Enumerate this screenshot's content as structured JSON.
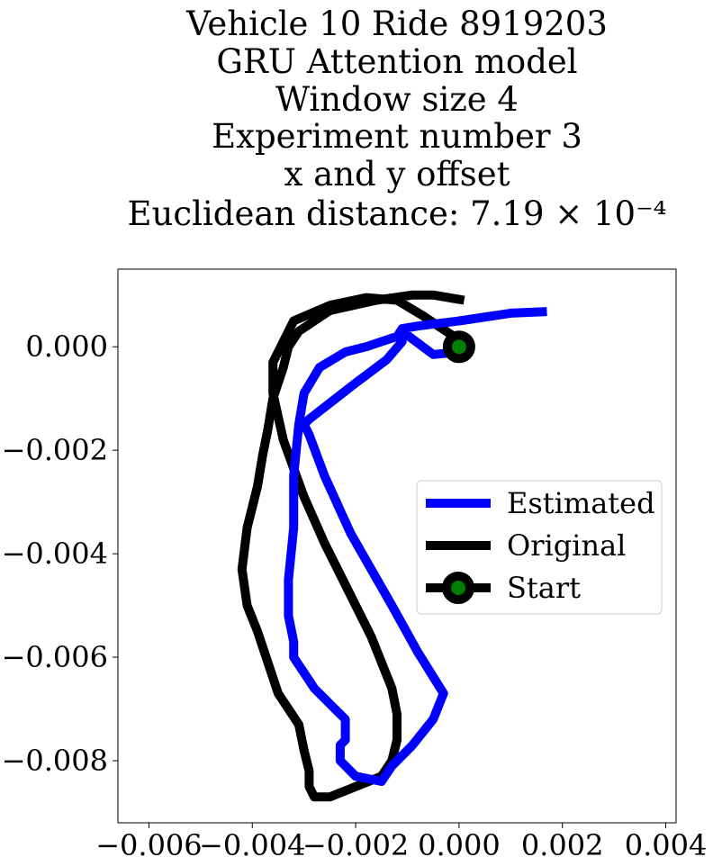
{
  "title_lines": [
    "Vehicle 10 Ride 8919203",
    "GRU Attention model",
    "Window size 4",
    "Experiment number 3",
    "x and y offset",
    "Euclidean distance: 7.19 × 10⁻⁴"
  ],
  "chart_data": {
    "type": "line",
    "title": "Vehicle 10 Ride 8919203 / GRU Attention model / Window size 4 / Experiment number 3 / x and y offset / Euclidean distance: 7.19 × 10⁻⁴",
    "xlabel": "",
    "ylabel": "",
    "xlim": [
      -0.0066,
      0.0042
    ],
    "ylim": [
      -0.0092,
      0.0015
    ],
    "xticks": [
      "−0.006",
      "−0.004",
      "−0.002",
      "0.000",
      "0.002",
      "0.004"
    ],
    "xtick_values": [
      -0.006,
      -0.004,
      -0.002,
      0.0,
      0.002,
      0.004
    ],
    "yticks": [
      "0.000",
      "−0.002",
      "−0.004",
      "−0.006",
      "−0.008"
    ],
    "ytick_values": [
      0.0,
      -0.002,
      -0.004,
      -0.006,
      -0.008
    ],
    "grid": false,
    "legend_position": "center-right",
    "series": [
      {
        "name": "Estimated",
        "color": "#0000ff",
        "style": "line",
        "x": [
          0.0017,
          0.001,
          0.0,
          -0.0008,
          -0.0011,
          -0.0012,
          -0.0018,
          -0.0022,
          -0.0027,
          -0.003,
          -0.0031,
          -0.0032,
          -0.0032,
          -0.0033,
          -0.0033,
          -0.0032,
          -0.0032,
          -0.003,
          -0.0028,
          -0.0026,
          -0.0024,
          -0.0022,
          -0.0022,
          -0.0023,
          -0.0023,
          -0.002,
          -0.0015,
          -0.0013,
          -0.0009,
          -0.0005,
          -0.0003,
          -0.0008,
          -0.0013,
          -0.0021,
          -0.0026,
          -0.0029,
          -0.003,
          -0.0029,
          -0.002,
          -0.0014,
          -0.0011,
          -0.0011,
          -0.0005,
          0.0
        ],
        "y": [
          0.00068,
          0.00065,
          0.0005,
          0.0004,
          0.00035,
          0.0002,
          0.0,
          -0.0001,
          -0.0004,
          -0.0009,
          -0.0015,
          -0.0025,
          -0.0035,
          -0.0045,
          -0.0052,
          -0.0057,
          -0.006,
          -0.0063,
          -0.0066,
          -0.0068,
          -0.007,
          -0.0072,
          -0.0076,
          -0.0077,
          -0.008,
          -0.0083,
          -0.0084,
          -0.0081,
          -0.0077,
          -0.0072,
          -0.0067,
          -0.0059,
          -0.005,
          -0.0036,
          -0.0025,
          -0.0017,
          -0.0015,
          -0.0014,
          -0.0007,
          -0.00025,
          0.0001,
          0.0003,
          -0.00015,
          -0.0001
        ]
      },
      {
        "name": "Original",
        "color": "#000000",
        "style": "line",
        "x": [
          0.0001,
          -0.0005,
          -0.0009,
          -0.0016,
          -0.0025,
          -0.0031,
          -0.0033,
          -0.0034,
          -0.0036,
          -0.0037,
          -0.0038,
          -0.0039,
          -0.0041,
          -0.0042,
          -0.0041,
          -0.0039,
          -0.0037,
          -0.0035,
          -0.0031,
          -0.003,
          -0.0029,
          -0.0029,
          -0.0028,
          -0.0027,
          -0.0025,
          -0.002,
          -0.0015,
          -0.0013,
          -0.0012,
          -0.0012,
          -0.0013,
          -0.0017,
          -0.0022,
          -0.0026,
          -0.003,
          -0.0034,
          -0.0036,
          -0.0036,
          -0.0032,
          -0.0025,
          -0.0018,
          -0.0012,
          -0.0007,
          -0.0001,
          0.0001
        ],
        "y": [
          0.0009,
          0.001,
          0.001,
          0.0009,
          0.0007,
          0.0003,
          0.0,
          -0.0004,
          -0.001,
          -0.0016,
          -0.0021,
          -0.0027,
          -0.0035,
          -0.0043,
          -0.005,
          -0.0055,
          -0.0061,
          -0.0067,
          -0.0073,
          -0.0078,
          -0.0082,
          -0.0085,
          -0.0087,
          -0.0087,
          -0.0087,
          -0.0085,
          -0.0083,
          -0.008,
          -0.0076,
          -0.0071,
          -0.0066,
          -0.0056,
          -0.0046,
          -0.0038,
          -0.0029,
          -0.0018,
          -0.0009,
          -0.0003,
          0.0005,
          0.0008,
          0.00095,
          0.0009,
          0.0006,
          0.0002,
          0.0
        ]
      },
      {
        "name": "Start",
        "color": "#000000",
        "marker_face": "#008000",
        "style": "marker",
        "x": [
          0.0
        ],
        "y": [
          0.0
        ]
      }
    ]
  }
}
